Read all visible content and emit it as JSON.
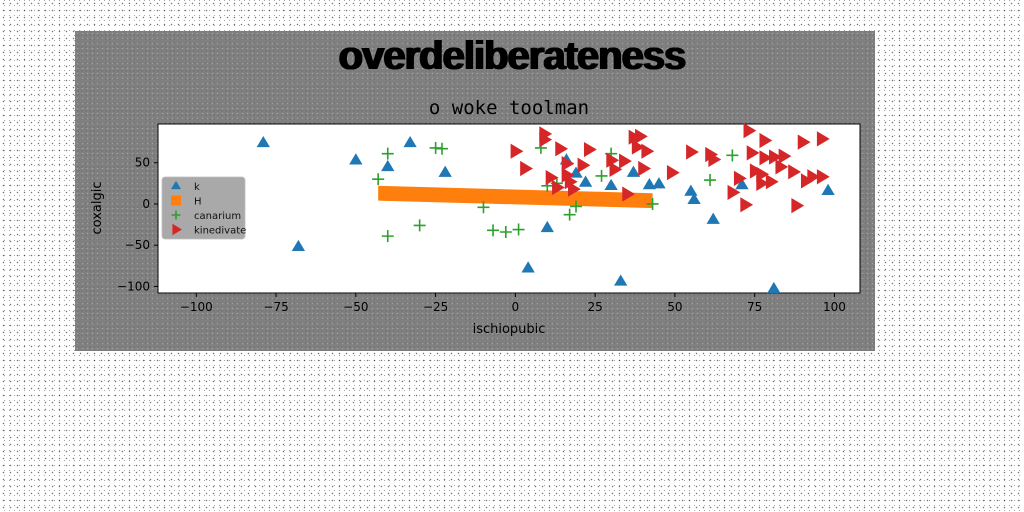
{
  "header": {
    "title": "overdeliberateness"
  },
  "chart_data": {
    "type": "scatter",
    "title": "o woke toolman",
    "xlabel": "ischiopubic",
    "ylabel": "coxalgic",
    "xlim": [
      -112,
      108
    ],
    "ylim": [
      -108,
      97
    ],
    "xticks": [
      -100,
      -75,
      -50,
      -25,
      0,
      25,
      50,
      75,
      100
    ],
    "yticks": [
      -100,
      -50,
      0,
      50
    ],
    "grid": false,
    "legend": "center-left",
    "series": [
      {
        "name": "k",
        "marker": "triangle-up",
        "color": "#1f77b4",
        "points": [
          [
            -79,
            74
          ],
          [
            -68,
            -52
          ],
          [
            -50,
            53
          ],
          [
            -40,
            45
          ],
          [
            -33,
            74
          ],
          [
            -22,
            38
          ],
          [
            4,
            -78
          ],
          [
            10,
            -29
          ],
          [
            16,
            53
          ],
          [
            19,
            37
          ],
          [
            22,
            26
          ],
          [
            30,
            22
          ],
          [
            33,
            -94
          ],
          [
            37,
            38
          ],
          [
            42,
            23
          ],
          [
            45,
            24
          ],
          [
            55,
            15
          ],
          [
            56,
            5
          ],
          [
            62,
            -19
          ],
          [
            71,
            23
          ],
          [
            81,
            -103
          ],
          [
            98,
            16
          ]
        ]
      },
      {
        "name": "H",
        "marker": "band",
        "color": "#ff7f0e",
        "points": [
          [
            -43,
            13
          ],
          [
            43,
            4
          ]
        ],
        "band_halfwidth": 9
      },
      {
        "name": "canarium",
        "marker": "plus",
        "color": "#2ca02c",
        "points": [
          [
            -43,
            30
          ],
          [
            -40,
            61
          ],
          [
            -40,
            -39
          ],
          [
            -30,
            -26
          ],
          [
            -25,
            68
          ],
          [
            -23,
            67
          ],
          [
            -10,
            -4
          ],
          [
            -7,
            -32
          ],
          [
            -3,
            -34
          ],
          [
            1,
            -31
          ],
          [
            8,
            68
          ],
          [
            10,
            22
          ],
          [
            13,
            25
          ],
          [
            17,
            -13
          ],
          [
            19,
            -3
          ],
          [
            27,
            34
          ],
          [
            30,
            61
          ],
          [
            43,
            0
          ],
          [
            61,
            29
          ],
          [
            68,
            59
          ]
        ]
      },
      {
        "name": "kinedivate",
        "marker": "triangle-right",
        "color": "#d62728",
        "points": [
          [
            0,
            64
          ],
          [
            3,
            43
          ],
          [
            9,
            85
          ],
          [
            9,
            78
          ],
          [
            11,
            32
          ],
          [
            13,
            20
          ],
          [
            14,
            67
          ],
          [
            16,
            49
          ],
          [
            16,
            35
          ],
          [
            17,
            27
          ],
          [
            18,
            18
          ],
          [
            21,
            47
          ],
          [
            23,
            66
          ],
          [
            30,
            53
          ],
          [
            31,
            42
          ],
          [
            34,
            52
          ],
          [
            35,
            12
          ],
          [
            37,
            81
          ],
          [
            38,
            69
          ],
          [
            39,
            82
          ],
          [
            40,
            43
          ],
          [
            41,
            64
          ],
          [
            49,
            38
          ],
          [
            55,
            63
          ],
          [
            61,
            60
          ],
          [
            62,
            54
          ],
          [
            68,
            14
          ],
          [
            72,
            -1
          ],
          [
            73,
            89
          ],
          [
            75,
            40
          ],
          [
            77,
            36
          ],
          [
            77,
            25
          ],
          [
            78,
            56
          ],
          [
            78,
            77
          ],
          [
            80,
            27
          ],
          [
            81,
            57
          ],
          [
            83,
            45
          ],
          [
            84,
            58
          ],
          [
            87,
            39
          ],
          [
            88,
            -2
          ],
          [
            90,
            75
          ],
          [
            91,
            28
          ],
          [
            93,
            33
          ],
          [
            96,
            33
          ],
          [
            96,
            79
          ],
          [
            70,
            31
          ],
          [
            74,
            62
          ]
        ]
      }
    ]
  }
}
